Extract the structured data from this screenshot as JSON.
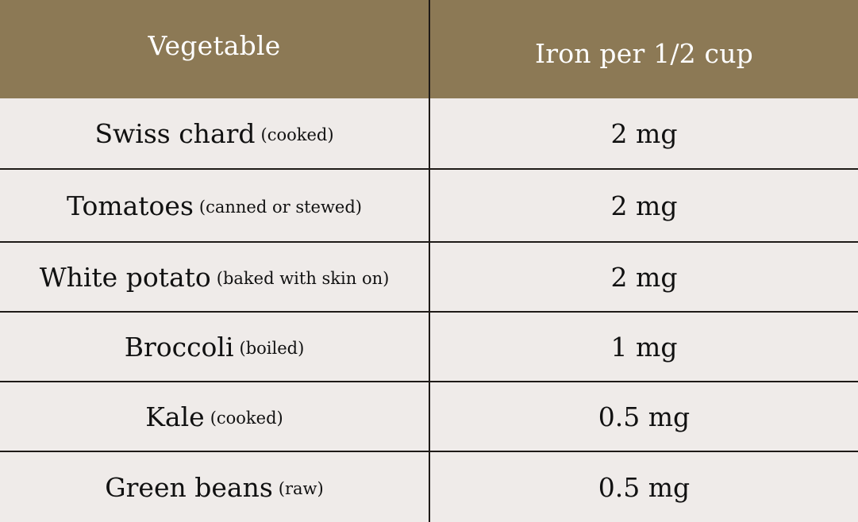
{
  "table": {
    "headers": {
      "vegetable": "Vegetable",
      "iron": "Iron per 1/2 cup"
    },
    "rows": [
      {
        "name": "Swiss chard",
        "note": "(cooked)",
        "iron": "2 mg"
      },
      {
        "name": "Tomatoes",
        "note": "(canned or stewed)",
        "iron": "2 mg"
      },
      {
        "name": "White potato",
        "note": "(baked with skin on)",
        "iron": "2 mg"
      },
      {
        "name": "Broccoli",
        "note": "(boiled)",
        "iron": "1 mg"
      },
      {
        "name": "Kale",
        "note": "(cooked)",
        "iron": "0.5 mg"
      },
      {
        "name": "Green beans",
        "note": "(raw)",
        "iron": "0.5 mg"
      }
    ]
  },
  "colors": {
    "header_bg": "#8c7955",
    "header_text": "#ffffff",
    "body_bg": "#efebe9",
    "border": "#1e1a17",
    "body_text": "#111111"
  }
}
